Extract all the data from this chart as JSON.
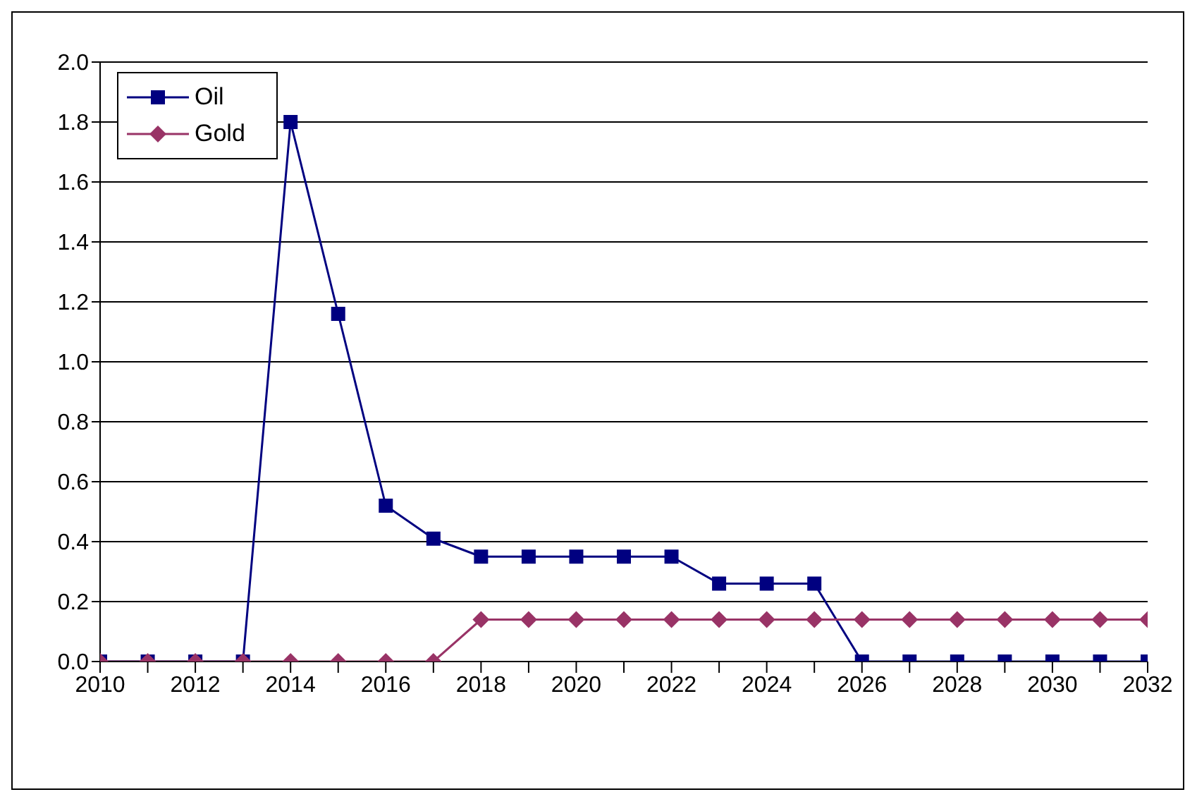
{
  "chart_data": {
    "type": "line",
    "x": [
      2010,
      2011,
      2012,
      2013,
      2014,
      2015,
      2016,
      2017,
      2018,
      2019,
      2020,
      2021,
      2022,
      2023,
      2024,
      2025,
      2026,
      2027,
      2028,
      2029,
      2030,
      2031,
      2032
    ],
    "series": [
      {
        "name": "Oil",
        "color": "#000080",
        "marker": "square",
        "values": [
          0,
          0,
          0,
          0,
          1.8,
          1.16,
          0.52,
          0.41,
          0.35,
          0.35,
          0.35,
          0.35,
          0.35,
          0.26,
          0.26,
          0.26,
          0,
          0,
          0,
          0,
          0,
          0,
          0
        ]
      },
      {
        "name": "Gold",
        "color": "#993366",
        "marker": "diamond",
        "values": [
          0,
          0,
          0,
          0,
          0,
          0,
          0,
          0,
          0.14,
          0.14,
          0.14,
          0.14,
          0.14,
          0.14,
          0.14,
          0.14,
          0.14,
          0.14,
          0.14,
          0.14,
          0.14,
          0.14,
          0.14
        ]
      }
    ],
    "xlim": [
      2010,
      2032
    ],
    "xticks": [
      2010,
      {
        "value": 2011,
        "label": null
      },
      2012,
      {
        "value": 2013,
        "label": null
      },
      2014,
      {
        "value": 2015,
        "label": null
      },
      2016,
      {
        "value": 2017,
        "label": null
      },
      2018,
      {
        "value": 2019,
        "label": null
      },
      2020,
      {
        "value": 2021,
        "label": null
      },
      2022,
      {
        "value": 2023,
        "label": null
      },
      2024,
      {
        "value": 2025,
        "label": null
      },
      2026,
      {
        "value": 2027,
        "label": null
      },
      2028,
      {
        "value": 2029,
        "label": null
      },
      2030,
      {
        "value": 2031,
        "label": null
      },
      2032
    ],
    "ylim": [
      0,
      2
    ],
    "yticks": [
      {
        "value": 0,
        "label": "0.0"
      },
      0.2,
      0.4,
      0.6,
      0.8,
      {
        "value": 1,
        "label": "1.0"
      },
      1.2,
      1.4,
      1.6,
      1.8,
      {
        "value": 2,
        "label": "2.0"
      }
    ],
    "grid": "y",
    "legend": "top left"
  }
}
